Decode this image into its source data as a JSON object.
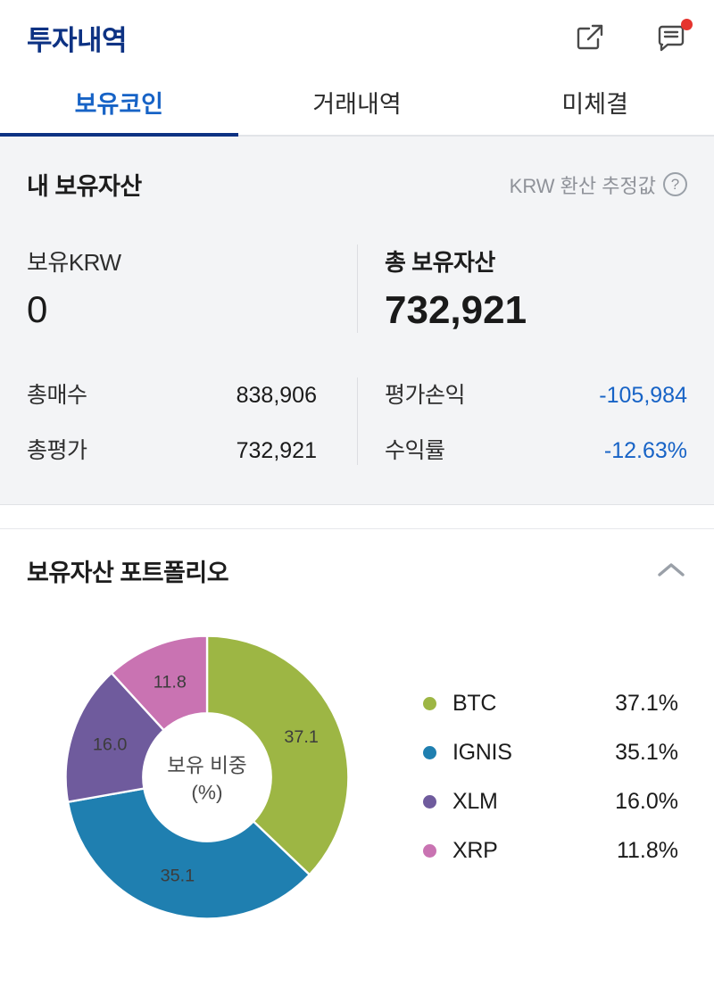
{
  "colors": {
    "title": "#0d3283",
    "tab-active": "#1763c6",
    "loss": "#1763c6",
    "badge": "#e5342e"
  },
  "header": {
    "title": "투자내역"
  },
  "tabs": [
    {
      "label": "보유코인",
      "active": true
    },
    {
      "label": "거래내역",
      "active": false
    },
    {
      "label": "미체결",
      "active": false
    }
  ],
  "assets": {
    "section_title": "내 보유자산",
    "krw_note": "KRW 환산 추정값",
    "help_symbol": "?",
    "holding": {
      "label": "보유KRW",
      "value": "0"
    },
    "total": {
      "label": "총 보유자산",
      "value": "732,921"
    },
    "left_rows": [
      {
        "label": "총매수",
        "value": "838,906"
      },
      {
        "label": "총평가",
        "value": "732,921"
      }
    ],
    "right_rows": [
      {
        "label": "평가손익",
        "value": "-105,984"
      },
      {
        "label": "수익률",
        "value": "-12.63%"
      }
    ]
  },
  "portfolio": {
    "title": "보유자산 포트폴리오"
  },
  "chart_data": {
    "type": "pie",
    "donut": true,
    "title": "보유자산 포트폴리오",
    "center_label": [
      "보유 비중",
      "(%)"
    ],
    "categories": [
      "BTC",
      "IGNIS",
      "XLM",
      "XRP"
    ],
    "values": [
      37.1,
      35.1,
      16.0,
      11.8
    ],
    "colors": [
      "#9db644",
      "#1f7fb0",
      "#6f5b9d",
      "#c973b2"
    ],
    "legend_position": "right",
    "start_angle_deg": 0,
    "direction": "clockwise"
  }
}
